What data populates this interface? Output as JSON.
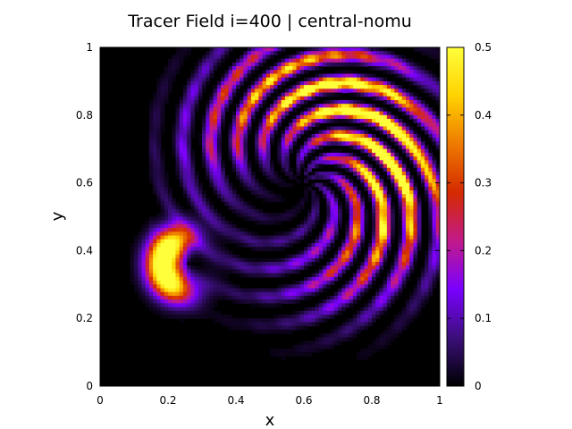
{
  "chart_data": {
    "type": "heatmap",
    "title": "Tracer Field i=400 | central-nomu",
    "xlabel": "x",
    "ylabel": "y",
    "xlim": [
      0,
      1
    ],
    "ylim": [
      0,
      1
    ],
    "x_ticks": [
      "0",
      "0.2",
      "0.4",
      "0.6",
      "0.8",
      "1"
    ],
    "y_ticks": [
      "0",
      "0.2",
      "0.4",
      "0.6",
      "0.8",
      "1"
    ],
    "colorbar": {
      "range": [
        0,
        0.5
      ],
      "ticks": [
        "0",
        "0.1",
        "0.2",
        "0.3",
        "0.4",
        "0.5"
      ],
      "colormap": [
        "#000000",
        "#3b0f7a",
        "#7a00ff",
        "#c21a8a",
        "#d42a00",
        "#ee7a00",
        "#ffd200",
        "#ffff3c"
      ]
    },
    "grid": false,
    "features": [
      {
        "shape": "crescent",
        "center": [
          0.26,
          0.36
        ],
        "peak_value": 0.5
      },
      {
        "shape": "banded-arc",
        "center": [
          0.6,
          0.6
        ],
        "peak_value": 0.5
      }
    ]
  }
}
